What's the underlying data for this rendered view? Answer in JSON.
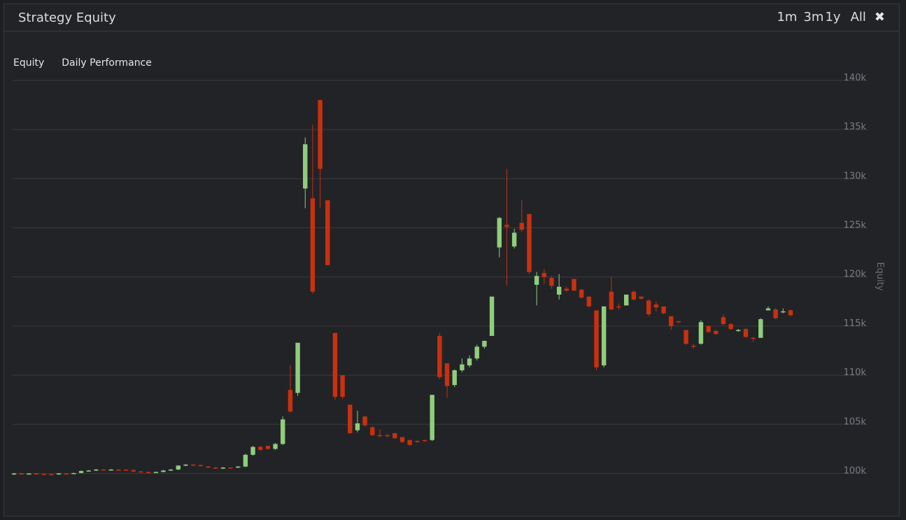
{
  "panel": {
    "title": "Strategy Equity",
    "range_buttons": [
      "1m",
      "3m",
      "1y",
      "All"
    ]
  },
  "tabs": [
    "Equity",
    "Daily Performance"
  ],
  "colors": {
    "up": "#8fce7c",
    "down": "#c8310f",
    "grid": "#3b3c41",
    "background": "#222327"
  },
  "icons": {
    "close": "close-icon"
  },
  "chart_data": {
    "type": "candlestick",
    "title": "",
    "xlabel": "",
    "ylabel": "Equity",
    "ylim": [
      98000,
      140000
    ],
    "y_ticks": [
      100000,
      105000,
      110000,
      115000,
      120000,
      125000,
      130000,
      135000,
      140000
    ],
    "y_tick_labels": [
      "100k",
      "105k",
      "110k",
      "115k",
      "120k",
      "125k",
      "130k",
      "135k",
      "140k"
    ],
    "grid": true,
    "candles": [
      [
        99900,
        100000,
        99850,
        100050
      ],
      [
        100000,
        99980,
        99900,
        100050
      ],
      [
        99980,
        99990,
        99920,
        100030
      ],
      [
        100000,
        99950,
        99880,
        100020
      ],
      [
        99950,
        99920,
        99860,
        99990
      ],
      [
        99920,
        99900,
        99850,
        99950
      ],
      [
        99900,
        100000,
        99880,
        100040
      ],
      [
        100000,
        99960,
        99920,
        100020
      ],
      [
        99960,
        100040,
        99940,
        100080
      ],
      [
        100050,
        100250,
        100020,
        100300
      ],
      [
        100250,
        100300,
        100200,
        100350
      ],
      [
        100300,
        100400,
        100250,
        100450
      ],
      [
        100400,
        100350,
        100300,
        100450
      ],
      [
        100350,
        100400,
        100320,
        100460
      ],
      [
        100400,
        100380,
        100320,
        100430
      ],
      [
        100380,
        100350,
        100300,
        100420
      ],
      [
        100350,
        100200,
        100150,
        100380
      ],
      [
        100200,
        100150,
        100100,
        100250
      ],
      [
        100150,
        100100,
        100050,
        100200
      ],
      [
        100100,
        100150,
        100050,
        100200
      ],
      [
        100150,
        100300,
        100120,
        100350
      ],
      [
        100300,
        100400,
        100250,
        100450
      ],
      [
        100400,
        100800,
        100350,
        100850
      ],
      [
        100800,
        100900,
        100750,
        100950
      ],
      [
        100900,
        100850,
        100800,
        100950
      ],
      [
        100850,
        100750,
        100700,
        100880
      ],
      [
        100700,
        100600,
        100550,
        100750
      ],
      [
        100600,
        100500,
        100450,
        100650
      ],
      [
        100500,
        100600,
        100450,
        100650
      ],
      [
        100600,
        100550,
        100500,
        100650
      ],
      [
        100600,
        100700,
        100550,
        100750
      ],
      [
        100700,
        101900,
        100650,
        102000
      ],
      [
        101900,
        102700,
        101800,
        102800
      ],
      [
        102700,
        102400,
        102300,
        102800
      ],
      [
        102800,
        102500,
        102400,
        102850
      ],
      [
        102500,
        103000,
        102400,
        103100
      ],
      [
        103000,
        105500,
        102900,
        105800
      ],
      [
        108500,
        106300,
        106200,
        111000
      ],
      [
        108200,
        113300,
        107900,
        113300
      ],
      [
        129000,
        133500,
        127000,
        134200
      ],
      [
        128000,
        118500,
        118300,
        135500
      ],
      [
        138000,
        131000,
        127000,
        138000
      ],
      [
        127800,
        121200,
        121200,
        127800
      ],
      [
        114300,
        107800,
        107500,
        114300
      ],
      [
        110000,
        107800,
        107600,
        110000
      ],
      [
        107000,
        104100,
        104000,
        107000
      ],
      [
        104400,
        105100,
        104200,
        106400
      ],
      [
        105800,
        104900,
        104800,
        105800
      ],
      [
        104700,
        103900,
        103800,
        104800
      ],
      [
        103900,
        103800,
        103700,
        104500
      ],
      [
        103900,
        103800,
        103700,
        104000
      ],
      [
        104100,
        103600,
        103500,
        104100
      ],
      [
        103700,
        103200,
        103100,
        103700
      ],
      [
        103400,
        102900,
        102800,
        103400
      ],
      [
        103300,
        103200,
        103100,
        103400
      ],
      [
        103400,
        103300,
        103200,
        103400
      ],
      [
        103400,
        108000,
        103300,
        108000
      ],
      [
        114000,
        109800,
        109600,
        114300
      ],
      [
        111200,
        108900,
        107700,
        111200
      ],
      [
        109000,
        110500,
        108800,
        110600
      ],
      [
        110500,
        111100,
        110300,
        111700
      ],
      [
        111000,
        111700,
        110800,
        112000
      ],
      [
        111700,
        112900,
        111500,
        113100
      ],
      [
        112900,
        113500,
        112700,
        113500
      ],
      [
        114000,
        118000,
        114000,
        118000
      ],
      [
        123000,
        126000,
        122000,
        126100
      ],
      [
        125300,
        125100,
        119100,
        131000
      ],
      [
        123100,
        124500,
        122900,
        124900
      ],
      [
        125500,
        124800,
        124600,
        127800
      ],
      [
        126400,
        120500,
        120300,
        126400
      ],
      [
        119200,
        120100,
        117100,
        120500
      ],
      [
        120400,
        120000,
        119300,
        120800
      ],
      [
        119900,
        119100,
        118800,
        120100
      ],
      [
        118200,
        119000,
        117700,
        120300
      ],
      [
        118800,
        118600,
        118500,
        119000
      ],
      [
        119800,
        118600,
        118600,
        119800
      ],
      [
        118700,
        117900,
        117800,
        118800
      ],
      [
        118000,
        117000,
        116900,
        118000
      ],
      [
        116600,
        110800,
        110500,
        116600
      ],
      [
        111000,
        117000,
        110800,
        117000
      ],
      [
        118500,
        116700,
        116600,
        120000
      ],
      [
        117000,
        116900,
        116700,
        117300
      ],
      [
        117100,
        118200,
        117100,
        118200
      ],
      [
        118500,
        117700,
        117600,
        118600
      ],
      [
        118000,
        117800,
        117700,
        118000
      ],
      [
        117600,
        116200,
        116000,
        117700
      ],
      [
        117200,
        116900,
        116500,
        117500
      ],
      [
        117000,
        116300,
        116200,
        117000
      ],
      [
        116000,
        115000,
        114600,
        116000
      ],
      [
        115500,
        115400,
        115300,
        115500
      ],
      [
        114600,
        113200,
        113100,
        114600
      ],
      [
        113000,
        112900,
        112700,
        113200
      ],
      [
        113200,
        115400,
        113100,
        115600
      ],
      [
        115000,
        114400,
        114300,
        115100
      ],
      [
        114500,
        114200,
        114100,
        114600
      ],
      [
        115900,
        115200,
        115100,
        116200
      ],
      [
        115200,
        114700,
        114600,
        115300
      ],
      [
        114600,
        114600,
        114400,
        114700
      ],
      [
        114700,
        113900,
        113800,
        114800
      ],
      [
        113800,
        113700,
        113400,
        113900
      ],
      [
        113800,
        115700,
        113800,
        115800
      ],
      [
        116600,
        116800,
        116600,
        117000
      ],
      [
        116700,
        115800,
        115700,
        116800
      ],
      [
        116500,
        116500,
        116300,
        116800
      ],
      [
        116600,
        116100,
        116000,
        116700
      ]
    ]
  }
}
